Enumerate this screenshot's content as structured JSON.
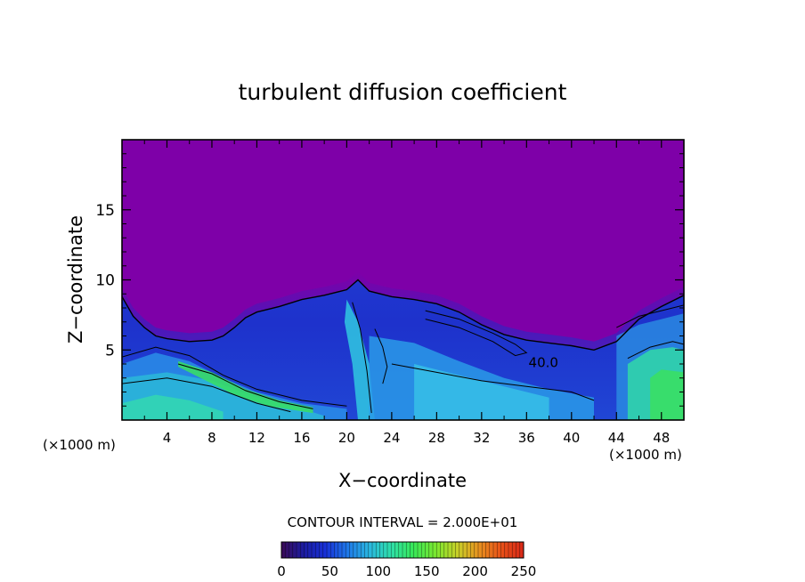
{
  "chart_data": {
    "type": "heatmap",
    "title": "turbulent diffusion coefficient",
    "xlabel": "X−coordinate",
    "ylabel": "Z−coordinate",
    "x_unit": "(×1000 m)",
    "z_unit": "(×1000 m)",
    "xlim": [
      0,
      50
    ],
    "ylim": [
      0,
      20
    ],
    "x_ticks": [
      4,
      8,
      12,
      16,
      20,
      24,
      28,
      32,
      36,
      40,
      44,
      48
    ],
    "x_tick_labels": [
      "4",
      "8",
      "12",
      "16",
      "20",
      "24",
      "28",
      "32",
      "36",
      "40",
      "44",
      "48"
    ],
    "y_ticks": [
      5,
      10,
      15
    ],
    "y_tick_labels": [
      "5",
      "10",
      "15"
    ],
    "contour_interval_text": "CONTOUR INTERVAL = 2.000E+01",
    "contour_label": "40.0",
    "contour_label_pos": [
      37.5,
      4.1
    ],
    "colorbar": {
      "min": 0,
      "max": 250,
      "ticks": [
        0,
        50,
        100,
        150,
        200,
        250
      ],
      "tick_labels": [
        "0",
        "50",
        "100",
        "150",
        "200",
        "250"
      ],
      "colors": [
        "#3a0a55",
        "#1c1ca0",
        "#1830d8",
        "#1e78e8",
        "#2ab8e0",
        "#2ee0a8",
        "#38e858",
        "#7ae830",
        "#c8d028",
        "#e89020",
        "#e85018",
        "#d82818"
      ]
    },
    "background_color": "#7e00a8",
    "boundary_layer_profile": [
      [
        0,
        8.8
      ],
      [
        1,
        7.4
      ],
      [
        2,
        6.6
      ],
      [
        3,
        6.0
      ],
      [
        4,
        5.8
      ],
      [
        6,
        5.6
      ],
      [
        8,
        5.7
      ],
      [
        9,
        6.0
      ],
      [
        10,
        6.6
      ],
      [
        11,
        7.3
      ],
      [
        12,
        7.7
      ],
      [
        14,
        8.1
      ],
      [
        16,
        8.6
      ],
      [
        18,
        8.9
      ],
      [
        20,
        9.3
      ],
      [
        21,
        10.0
      ],
      [
        22,
        9.2
      ],
      [
        24,
        8.8
      ],
      [
        26,
        8.6
      ],
      [
        28,
        8.3
      ],
      [
        30,
        7.7
      ],
      [
        32,
        6.8
      ],
      [
        34,
        6.1
      ],
      [
        36,
        5.7
      ],
      [
        38,
        5.5
      ],
      [
        40,
        5.3
      ],
      [
        42,
        5.0
      ],
      [
        44,
        5.6
      ],
      [
        46,
        7.2
      ],
      [
        48,
        8.1
      ],
      [
        50,
        8.9
      ]
    ]
  }
}
